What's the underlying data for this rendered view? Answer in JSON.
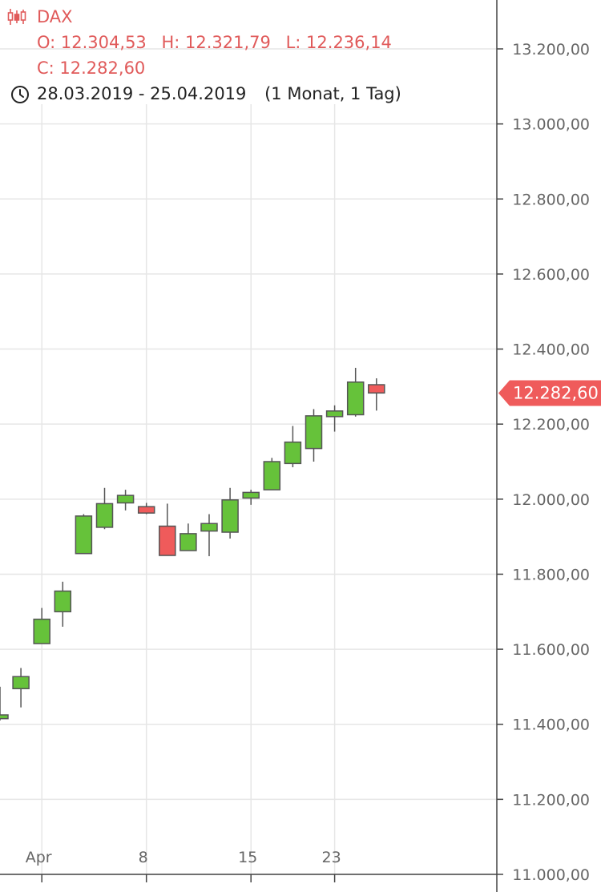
{
  "header": {
    "symbol": "DAX",
    "open_label": "O: 12.304,53",
    "high_label": "H: 12.321,79",
    "low_label": "L: 12.236,14",
    "close_label": "C: 12.282,60",
    "date_range": "28.03.2019 - 25.04.2019",
    "interval": "(1 Monat, 1 Tag)",
    "symbol_icon": "candlestick-icon",
    "range_icon": "clock-icon"
  },
  "colors": {
    "up": "#66c23a",
    "down": "#ef5b5b",
    "outline": "#555555",
    "grid": "#e6e6e6",
    "axis": "#444444",
    "accent": "#e05a5a"
  },
  "chart_data": {
    "type": "candlestick",
    "title": "DAX",
    "ylim": [
      11000,
      13250
    ],
    "yticks": [
      {
        "value": 11000,
        "label": "11.000,00"
      },
      {
        "value": 11200,
        "label": "11.200,00"
      },
      {
        "value": 11400,
        "label": "11.400,00"
      },
      {
        "value": 11600,
        "label": "11.600,00"
      },
      {
        "value": 11800,
        "label": "11.800,00"
      },
      {
        "value": 12000,
        "label": "12.000,00"
      },
      {
        "value": 12200,
        "label": "12.200,00"
      },
      {
        "value": 12400,
        "label": "12.400,00"
      },
      {
        "value": 12600,
        "label": "12.600,00"
      },
      {
        "value": 12800,
        "label": "12.800,00"
      },
      {
        "value": 13000,
        "label": "13.000,00"
      },
      {
        "value": 13200,
        "label": "13.200,00"
      }
    ],
    "xticks": [
      {
        "date": "2019-04-01",
        "label": "Apr"
      },
      {
        "date": "2019-04-08",
        "label": "8"
      },
      {
        "date": "2019-04-15",
        "label": "15"
      },
      {
        "date": "2019-04-23",
        "label": "23"
      }
    ],
    "grid": true,
    "last_price": {
      "value": 12282.6,
      "label": "12.282,60"
    },
    "candles": [
      {
        "date": "2019-03-28",
        "open": 11415,
        "high": 11500,
        "low": 11410,
        "close": 11425
      },
      {
        "date": "2019-03-29",
        "open": 11495,
        "high": 11550,
        "low": 11445,
        "close": 11527
      },
      {
        "date": "2019-04-01",
        "open": 11615,
        "high": 11710,
        "low": 11615,
        "close": 11680
      },
      {
        "date": "2019-04-02",
        "open": 11700,
        "high": 11780,
        "low": 11660,
        "close": 11755
      },
      {
        "date": "2019-04-03",
        "open": 11855,
        "high": 11960,
        "low": 11855,
        "close": 11955
      },
      {
        "date": "2019-04-04",
        "open": 11925,
        "high": 12030,
        "low": 11920,
        "close": 11988
      },
      {
        "date": "2019-04-05",
        "open": 11990,
        "high": 12025,
        "low": 11970,
        "close": 12010
      },
      {
        "date": "2019-04-08",
        "open": 11980,
        "high": 11990,
        "low": 11960,
        "close": 11963
      },
      {
        "date": "2019-04-09",
        "open": 11928,
        "high": 11988,
        "low": 11850,
        "close": 11850
      },
      {
        "date": "2019-04-10",
        "open": 11863,
        "high": 11935,
        "low": 11863,
        "close": 11908
      },
      {
        "date": "2019-04-11",
        "open": 11915,
        "high": 11960,
        "low": 11848,
        "close": 11935
      },
      {
        "date": "2019-04-12",
        "open": 11912,
        "high": 12030,
        "low": 11895,
        "close": 11998
      },
      {
        "date": "2019-04-15",
        "open": 12003,
        "high": 12025,
        "low": 11985,
        "close": 12018
      },
      {
        "date": "2019-04-16",
        "open": 12025,
        "high": 12110,
        "low": 12025,
        "close": 12100
      },
      {
        "date": "2019-04-17",
        "open": 12095,
        "high": 12195,
        "low": 12085,
        "close": 12152
      },
      {
        "date": "2019-04-18",
        "open": 12135,
        "high": 12240,
        "low": 12100,
        "close": 12222
      },
      {
        "date": "2019-04-23",
        "open": 12220,
        "high": 12250,
        "low": 12180,
        "close": 12235
      },
      {
        "date": "2019-04-24",
        "open": 12225,
        "high": 12350,
        "low": 12220,
        "close": 12312
      },
      {
        "date": "2019-04-25",
        "open": 12305,
        "high": 12322,
        "low": 12236,
        "close": 12283
      }
    ]
  }
}
